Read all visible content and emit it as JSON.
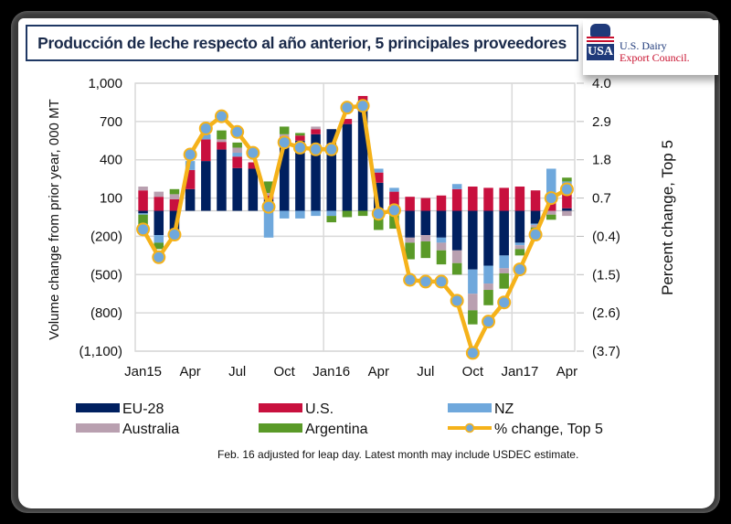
{
  "title": "Producción de leche respecto al año anterior, 5 principales proveedores",
  "logo": {
    "mark": "USA",
    "line1": "U.S. Dairy",
    "line2": "Export Council."
  },
  "footnote": "Feb. 16 adjusted for leap day. Latest month may include USDEC estimate.",
  "chart_data": {
    "type": "bar",
    "stacked": true,
    "title": "Producción de leche respecto al año anterior, 5 principales proveedores",
    "ylabel": "Volume change from prior year, 000 MT",
    "y2label": "Percent change, Top 5",
    "ylim": [
      -1100,
      1000
    ],
    "y2lim": [
      -3.7,
      4.0
    ],
    "yticks": [
      "1,000",
      "700",
      "400",
      "100",
      "(200)",
      "(500)",
      "(800)",
      "(1,100)"
    ],
    "ytick_values": [
      1000,
      700,
      400,
      100,
      -200,
      -500,
      -800,
      -1100
    ],
    "y2ticks": [
      "4.0",
      "2.9",
      "1.8",
      "0.7",
      "(0.4)",
      "(1.5)",
      "(2.6)",
      "(3.7)"
    ],
    "y2tick_values": [
      4.0,
      2.9,
      1.8,
      0.7,
      -0.4,
      -1.5,
      -2.6,
      -3.7
    ],
    "xtick_labels": [
      {
        "index": 0,
        "label": "Jan15"
      },
      {
        "index": 3,
        "label": "Apr"
      },
      {
        "index": 6,
        "label": "Jul"
      },
      {
        "index": 9,
        "label": "Oct"
      },
      {
        "index": 12,
        "label": "Jan16"
      },
      {
        "index": 15,
        "label": "Apr"
      },
      {
        "index": 18,
        "label": "Jul"
      },
      {
        "index": 21,
        "label": "Oct"
      },
      {
        "index": 24,
        "label": "Jan17"
      },
      {
        "index": 27,
        "label": "Apr"
      }
    ],
    "grid": true,
    "legend_position": "bottom",
    "categories": [
      "Jan15",
      "Feb15",
      "Mar15",
      "Apr15",
      "May15",
      "Jun15",
      "Jul15",
      "Aug15",
      "Sep15",
      "Oct15",
      "Nov15",
      "Dec15",
      "Jan16",
      "Feb16",
      "Mar16",
      "Apr16",
      "May16",
      "Jun16",
      "Jul16",
      "Aug16",
      "Sep16",
      "Oct16",
      "Nov16",
      "Dec16",
      "Jan17",
      "Feb17",
      "Mar17",
      "Apr17"
    ],
    "series": [
      {
        "name": "EU-28",
        "color": "#002060",
        "values": [
          -20,
          -190,
          -190,
          170,
          390,
          480,
          335,
          330,
          90,
          560,
          550,
          600,
          640,
          680,
          870,
          220,
          20,
          -210,
          -190,
          -210,
          -310,
          -460,
          -430,
          -350,
          -250,
          -100,
          0,
          20
        ]
      },
      {
        "name": "U.S.",
        "color": "#c8103e",
        "values": [
          160,
          110,
          90,
          150,
          170,
          60,
          90,
          50,
          30,
          20,
          40,
          40,
          0,
          40,
          30,
          80,
          130,
          110,
          100,
          120,
          170,
          190,
          180,
          180,
          190,
          160,
          110,
          170
        ]
      },
      {
        "name": "NZ",
        "color": "#6fa8dc",
        "values": [
          -10,
          -60,
          -10,
          70,
          40,
          0,
          30,
          0,
          -210,
          -60,
          -60,
          -40,
          -40,
          0,
          0,
          30,
          30,
          0,
          0,
          -40,
          40,
          -190,
          -140,
          -100,
          -20,
          -10,
          220,
          40
        ]
      },
      {
        "name": "Australia",
        "color": "#b9a0b0",
        "values": [
          30,
          40,
          40,
          0,
          0,
          20,
          40,
          0,
          20,
          20,
          0,
          20,
          0,
          0,
          0,
          -20,
          -20,
          -40,
          -50,
          -60,
          -100,
          -130,
          -50,
          -40,
          -30,
          -20,
          -30,
          -40
        ]
      },
      {
        "name": "Argentina",
        "color": "#5a9a28",
        "values": [
          -120,
          -50,
          40,
          0,
          0,
          70,
          40,
          0,
          90,
          60,
          20,
          0,
          -50,
          -50,
          -40,
          -130,
          -120,
          -130,
          -130,
          -110,
          -90,
          -110,
          -120,
          -120,
          -50,
          -30,
          -40,
          30
        ]
      }
    ],
    "line_series": {
      "name": "% change, Top 5",
      "color": "#f5b21a",
      "marker_color": "#6fa8dc",
      "axis": "right",
      "values": [
        -0.2,
        -1.0,
        -0.35,
        1.95,
        2.7,
        3.05,
        2.6,
        2.0,
        0.45,
        2.3,
        2.15,
        2.1,
        2.1,
        3.3,
        3.35,
        0.25,
        0.35,
        -1.65,
        -1.7,
        -1.7,
        -2.25,
        -3.75,
        -2.85,
        -2.3,
        -1.35,
        -0.35,
        0.7,
        0.95
      ]
    },
    "legend": [
      {
        "label": "EU-28",
        "kind": "bar",
        "color": "#002060"
      },
      {
        "label": "U.S.",
        "kind": "bar",
        "color": "#c8103e"
      },
      {
        "label": "NZ",
        "kind": "bar",
        "color": "#6fa8dc"
      },
      {
        "label": "Australia",
        "kind": "bar",
        "color": "#b9a0b0"
      },
      {
        "label": "Argentina",
        "kind": "bar",
        "color": "#5a9a28"
      },
      {
        "label": "% change, Top 5",
        "kind": "line",
        "color": "#f5b21a"
      }
    ]
  }
}
